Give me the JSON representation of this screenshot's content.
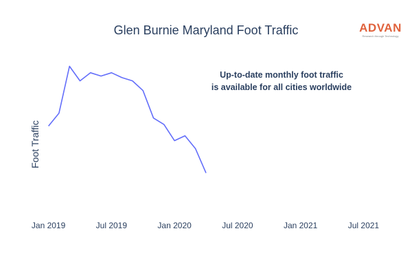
{
  "chart_data": {
    "type": "line",
    "title": "Glen Burnie Maryland Foot Traffic",
    "xlabel": "",
    "ylabel": "Foot Traffic",
    "x_ticks": [
      "Jan 2019",
      "Jul 2019",
      "Jan 2020",
      "Jul 2020",
      "Jan 2021",
      "Jul 2021"
    ],
    "x_range": [
      "2018-11",
      "2021-09"
    ],
    "y_shown": false,
    "grid": false,
    "series": [
      {
        "color": "#636efa",
        "x": [
          "2019-01",
          "2019-02",
          "2019-03",
          "2019-04",
          "2019-05",
          "2019-06",
          "2019-07",
          "2019-08",
          "2019-09",
          "2019-10",
          "2019-11",
          "2019-12",
          "2020-01",
          "2020-02",
          "2020-03",
          "2020-04"
        ],
        "values": [
          0.56,
          0.64,
          0.93,
          0.84,
          0.89,
          0.87,
          0.89,
          0.86,
          0.84,
          0.78,
          0.61,
          0.57,
          0.47,
          0.5,
          0.42,
          0.27
        ]
      }
    ],
    "annotation": [
      "Up-to-date monthly foot traffic",
      "is available for all cities worldwide"
    ]
  },
  "logo": {
    "word": "ADVAN",
    "tagline": "Research through Technology",
    "color": "#e0623c"
  }
}
